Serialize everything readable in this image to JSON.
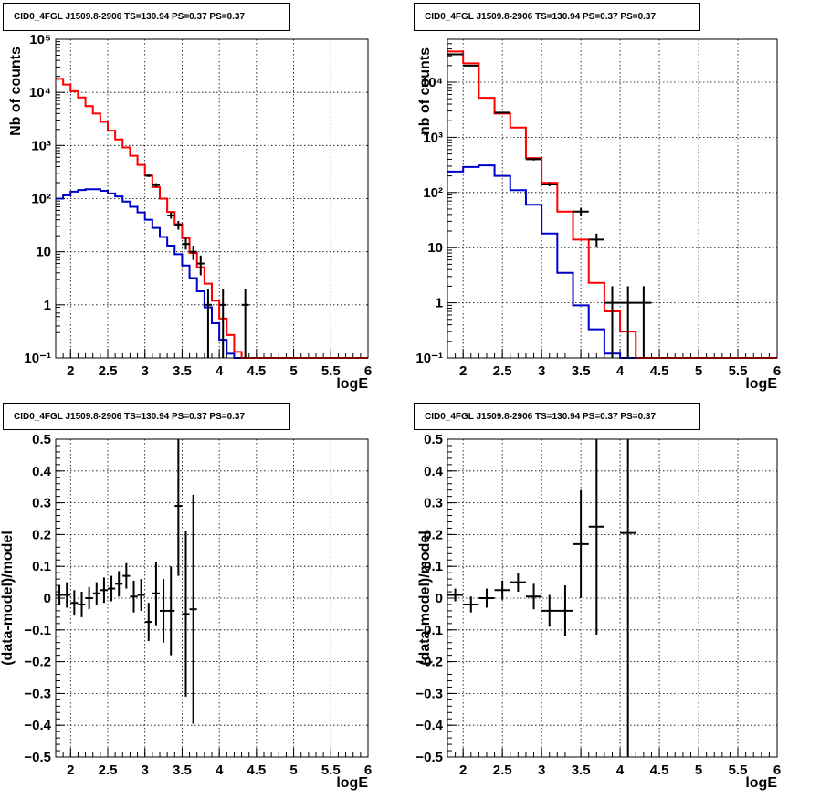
{
  "panel_title": "CID0_4FGL J1509.8-2906 TS=130.94 PS=0.37 PS=0.37",
  "colors": {
    "data": "#000000",
    "total_model": "#ff0000",
    "source_model": "#0000cc",
    "grid": "#000000"
  },
  "chart_data": [
    {
      "type": "line",
      "title": "CID0_4FGL J1509.8-2906 TS=130.94 PS=0.37 PS=0.37",
      "xlabel": "logE",
      "ylabel": "Nb of counts",
      "xlim": [
        1.8,
        6.0
      ],
      "ylim": [
        0.1,
        100000
      ],
      "yscale": "log",
      "grid": true,
      "x_ticks": [
        "2",
        "2.5",
        "3",
        "3.5",
        "4",
        "4.5",
        "5",
        "5.5",
        "6"
      ],
      "y_ticks": [
        "10⁻¹",
        "1",
        "10",
        "10²",
        "10³",
        "10⁴",
        "10⁵"
      ],
      "bin_edges": [
        1.8,
        1.9,
        2.0,
        2.1,
        2.2,
        2.3,
        2.4,
        2.5,
        2.6,
        2.7,
        2.8,
        2.9,
        3.0,
        3.1,
        3.2,
        3.3,
        3.4,
        3.5,
        3.6,
        3.7,
        3.8,
        3.9,
        4.0,
        4.1,
        4.2,
        4.3,
        4.4,
        4.5,
        4.6,
        4.7,
        4.8,
        4.9,
        5.0,
        5.1,
        5.2,
        5.3,
        5.4,
        5.5,
        5.6,
        5.7,
        5.8,
        5.9,
        6.0
      ],
      "series": [
        {
          "values": [
            18000,
            14000,
            10500,
            8000,
            5500,
            4000,
            2800,
            1900,
            1300,
            920,
            640,
            430,
            270,
            165,
            100,
            56,
            33,
            18,
            9.5,
            5.1,
            2.5,
            1.2,
            0.55,
            0.27,
            0.13,
            0.1,
            0.1,
            0.1,
            0.1,
            0.1,
            0.1,
            0.1,
            0.1,
            0.1,
            0.1,
            0.1,
            0.1,
            0.1,
            0.1,
            0.1,
            0.1,
            0.1
          ]
        },
        {
          "values": [
            100,
            115,
            135,
            145,
            150,
            150,
            140,
            125,
            110,
            88,
            70,
            55,
            40,
            28,
            19,
            13,
            9,
            5.5,
            3.2,
            1.8,
            0.9,
            0.45,
            0.22,
            0.12,
            0.1,
            0.1,
            0.1,
            0.1,
            0.1,
            0.1,
            0.1,
            0.1,
            0.1,
            0.1,
            0.1,
            0.1,
            0.1,
            0.1,
            0.1,
            0.1,
            0.1,
            0.1
          ]
        },
        {
          "points": [
            {
              "x": 3.05,
              "y": 270,
              "ylo": 255,
              "yhi": 285
            },
            {
              "x": 3.15,
              "y": 180,
              "ylo": 165,
              "yhi": 195
            },
            {
              "x": 3.35,
              "y": 48,
              "ylo": 42,
              "yhi": 55
            },
            {
              "x": 3.45,
              "y": 32,
              "ylo": 26,
              "yhi": 38
            },
            {
              "x": 3.55,
              "y": 14,
              "ylo": 11,
              "yhi": 18
            },
            {
              "x": 3.65,
              "y": 10,
              "ylo": 7,
              "yhi": 13
            },
            {
              "x": 3.75,
              "y": 6,
              "ylo": 3.6,
              "yhi": 8.5
            },
            {
              "x": 3.85,
              "y": 1,
              "ylo": 0.1,
              "yhi": 2
            },
            {
              "x": 4.05,
              "y": 1,
              "ylo": 0.1,
              "yhi": 2
            },
            {
              "x": 4.35,
              "y": 1,
              "ylo": 0.1,
              "yhi": 2
            }
          ]
        }
      ]
    },
    {
      "type": "line",
      "title": "CID0_4FGL J1509.8-2906 TS=130.94 PS=0.37 PS=0.37",
      "xlabel": "logE",
      "ylabel": "nb of counts",
      "xlim": [
        1.8,
        6.0
      ],
      "ylim": [
        0.1,
        60000
      ],
      "yscale": "log",
      "grid": true,
      "x_ticks": [
        "2",
        "2.5",
        "3",
        "3.5",
        "4",
        "4.5",
        "5",
        "5.5",
        "6"
      ],
      "y_ticks": [
        "10⁻¹",
        "1",
        "10",
        "10²",
        "10³",
        "10⁴"
      ],
      "bin_edges": [
        1.8,
        2.0,
        2.2,
        2.4,
        2.6,
        2.8,
        3.0,
        3.2,
        3.4,
        3.6,
        3.8,
        4.0,
        4.2,
        4.4,
        4.6,
        4.8,
        5.0,
        5.2,
        5.4,
        5.6,
        5.8,
        6.0
      ],
      "series": [
        {
          "values": [
            36000,
            22000,
            5200,
            2700,
            1500,
            420,
            150,
            45,
            14,
            2.3,
            0.7,
            0.3,
            0.1,
            0.1,
            0.1,
            0.1,
            0.1,
            0.1,
            0.1,
            0.1,
            0.1
          ]
        },
        {
          "values": [
            240,
            290,
            310,
            200,
            110,
            60,
            18,
            3.5,
            0.9,
            0.33,
            0.12,
            0.1,
            0.1,
            0.1,
            0.1,
            0.1,
            0.1,
            0.1,
            0.1,
            0.1,
            0.1
          ]
        },
        {
          "points": [
            {
              "x": 1.9,
              "y": 32000,
              "ylo": 31000,
              "yhi": 33000
            },
            {
              "x": 2.1,
              "y": 20000,
              "ylo": 19500,
              "yhi": 20500
            },
            {
              "x": 2.5,
              "y": 2800,
              "ylo": 2700,
              "yhi": 2900
            },
            {
              "x": 2.9,
              "y": 400,
              "ylo": 380,
              "yhi": 420
            },
            {
              "x": 3.1,
              "y": 140,
              "ylo": 130,
              "yhi": 150
            },
            {
              "x": 3.5,
              "y": 45,
              "ylo": 38,
              "yhi": 52
            },
            {
              "x": 3.7,
              "y": 14,
              "ylo": 10,
              "yhi": 18
            },
            {
              "x": 3.9,
              "y": 1,
              "ylo": 0.1,
              "yhi": 2
            },
            {
              "x": 4.1,
              "y": 1,
              "ylo": 0.1,
              "yhi": 2
            },
            {
              "x": 4.3,
              "y": 1,
              "ylo": 0.1,
              "yhi": 2
            }
          ]
        }
      ]
    },
    {
      "type": "scatter",
      "title": "CID0_4FGL J1509.8-2906 TS=130.94 PS=0.37 PS=0.37",
      "xlabel": "logE",
      "ylabel": "(data-model)/model",
      "xlim": [
        1.8,
        6.0
      ],
      "ylim": [
        -0.5,
        0.5
      ],
      "grid": true,
      "x_ticks": [
        "2",
        "2.5",
        "3",
        "3.5",
        "4",
        "4.5",
        "5",
        "5.5",
        "6"
      ],
      "y_ticks": [
        "−0.5",
        "−0.4",
        "−0.3",
        "−0.2",
        "−0.1",
        "0",
        "0.1",
        "0.2",
        "0.3",
        "0.4",
        "0.5"
      ],
      "series": [
        {
          "points": [
            {
              "x": 1.85,
              "y": 0.01,
              "err": 0.03
            },
            {
              "x": 1.95,
              "y": 0.01,
              "err": 0.04
            },
            {
              "x": 2.05,
              "y": -0.015,
              "err": 0.04
            },
            {
              "x": 2.15,
              "y": -0.02,
              "err": 0.04
            },
            {
              "x": 2.25,
              "y": 0.0,
              "err": 0.035
            },
            {
              "x": 2.35,
              "y": 0.015,
              "err": 0.035
            },
            {
              "x": 2.45,
              "y": 0.025,
              "err": 0.04
            },
            {
              "x": 2.55,
              "y": 0.03,
              "err": 0.04
            },
            {
              "x": 2.65,
              "y": 0.045,
              "err": 0.04
            },
            {
              "x": 2.75,
              "y": 0.07,
              "err": 0.04
            },
            {
              "x": 2.85,
              "y": 0.005,
              "err": 0.05
            },
            {
              "x": 2.95,
              "y": 0.01,
              "err": 0.05
            },
            {
              "x": 3.05,
              "y": -0.075,
              "err": 0.06
            },
            {
              "x": 3.15,
              "y": 0.015,
              "err": 0.1
            },
            {
              "x": 3.25,
              "y": -0.04,
              "err": 0.1
            },
            {
              "x": 3.35,
              "y": -0.04,
              "err": 0.14
            },
            {
              "x": 3.45,
              "y": 0.29,
              "err": 0.22
            },
            {
              "x": 3.55,
              "y": -0.05,
              "err": 0.26
            },
            {
              "x": 3.65,
              "y": -0.035,
              "err": 0.36
            }
          ]
        }
      ]
    },
    {
      "type": "scatter",
      "title": "CID0_4FGL J1509.8-2906 TS=130.94 PS=0.37 PS=0.37",
      "xlabel": "logE",
      "ylabel": "(data-model)/model",
      "xlim": [
        1.8,
        6.0
      ],
      "ylim": [
        -0.5,
        0.5
      ],
      "grid": true,
      "x_ticks": [
        "2",
        "2.5",
        "3",
        "3.5",
        "4",
        "4.5",
        "5",
        "5.5",
        "6"
      ],
      "y_ticks": [
        "−0.5",
        "−0.4",
        "−0.3",
        "−0.2",
        "−0.1",
        "0",
        "0.1",
        "0.2",
        "0.3",
        "0.4",
        "0.5"
      ],
      "series": [
        {
          "points": [
            {
              "x": 1.9,
              "y": 0.01,
              "err": 0.02
            },
            {
              "x": 2.1,
              "y": -0.02,
              "err": 0.025
            },
            {
              "x": 2.3,
              "y": 0.0,
              "err": 0.03
            },
            {
              "x": 2.5,
              "y": 0.025,
              "err": 0.03
            },
            {
              "x": 2.7,
              "y": 0.05,
              "err": 0.03
            },
            {
              "x": 2.9,
              "y": 0.005,
              "err": 0.04
            },
            {
              "x": 3.1,
              "y": -0.04,
              "err": 0.05
            },
            {
              "x": 3.3,
              "y": -0.04,
              "err": 0.08
            },
            {
              "x": 3.5,
              "y": 0.17,
              "err": 0.17
            },
            {
              "x": 3.7,
              "y": 0.225,
              "err": 0.34
            },
            {
              "x": 4.1,
              "y": 0.205,
              "err": 0.75
            }
          ]
        }
      ]
    }
  ]
}
